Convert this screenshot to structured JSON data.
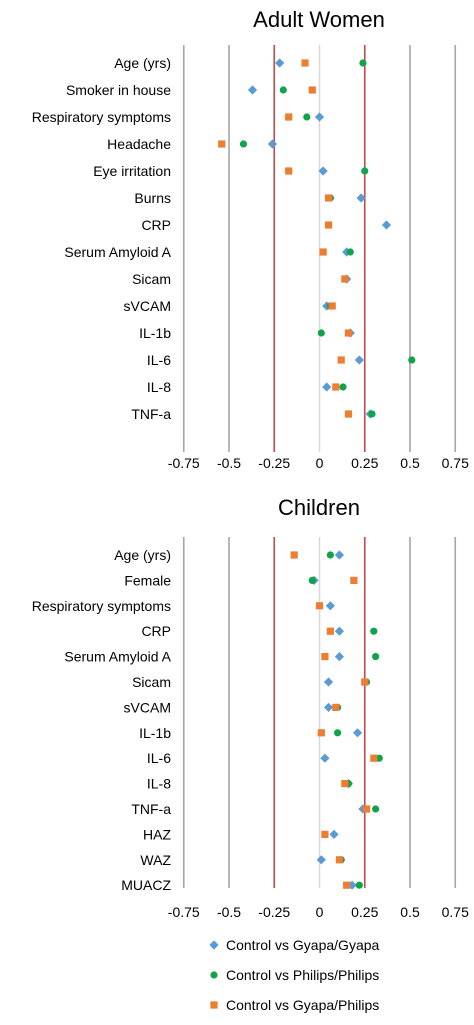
{
  "legend": [
    {
      "name": "Control vs Gyapa/Gyapa",
      "color": "#5b9bd5",
      "marker": "diamond"
    },
    {
      "name": "Control vs Philips/Philips",
      "color": "#0fa34a",
      "marker": "circle"
    },
    {
      "name": "Control vs Gyapa/Philips",
      "color": "#ed7d31",
      "marker": "square"
    }
  ],
  "chart_data": [
    {
      "type": "scatter",
      "title": "Adult Women",
      "xlim": [
        -0.75,
        0.75
      ],
      "x_ticks": [
        "-0.75",
        "-0.5",
        "-0.25",
        "0",
        "0.25",
        "0.5",
        "0.75"
      ],
      "reference_lines": [
        -0.25,
        0.25
      ],
      "categories": [
        "Age (yrs)",
        "Smoker in house",
        "Respiratory symptoms",
        "Headache",
        "Eye irritation",
        "Burns",
        "CRP",
        "Serum Amyloid A",
        "Sicam",
        "sVCAM",
        "IL-1b",
        "IL-6",
        "IL-8",
        "TNF-a"
      ],
      "series": [
        {
          "name": "Control vs Gyapa/Gyapa",
          "values": [
            -0.22,
            -0.37,
            0.0,
            -0.26,
            0.02,
            0.23,
            0.37,
            0.15,
            0.15,
            0.04,
            0.17,
            0.22,
            0.04,
            0.28
          ]
        },
        {
          "name": "Control vs Philips/Philips",
          "values": [
            0.24,
            -0.2,
            -0.07,
            -0.42,
            0.25,
            0.06,
            null,
            0.17,
            0.14,
            0.06,
            0.01,
            0.51,
            0.13,
            0.29
          ]
        },
        {
          "name": "Control vs Gyapa/Philips",
          "values": [
            -0.08,
            -0.04,
            -0.17,
            -0.54,
            -0.17,
            0.05,
            0.05,
            0.02,
            0.14,
            0.07,
            0.16,
            0.12,
            0.09,
            0.16
          ]
        }
      ]
    },
    {
      "type": "scatter",
      "title": "Children",
      "xlim": [
        -0.75,
        0.75
      ],
      "x_ticks": [
        "-0.75",
        "-0.5",
        "-0.25",
        "0",
        "0.25",
        "0.5",
        "0.75"
      ],
      "reference_lines": [
        -0.25,
        0.25
      ],
      "categories": [
        "Age (yrs)",
        "Female",
        "Respiratory symptoms",
        "CRP",
        "Serum Amyloid A",
        "Sicam",
        "sVCAM",
        "IL-1b",
        "IL-6",
        "IL-8",
        "TNF-a",
        "HAZ",
        "WAZ",
        "MUACZ"
      ],
      "series": [
        {
          "name": "Control vs Gyapa/Gyapa",
          "values": [
            0.11,
            -0.03,
            0.06,
            0.11,
            0.11,
            0.05,
            0.05,
            0.21,
            0.03,
            0.16,
            0.24,
            0.08,
            0.01,
            0.18
          ]
        },
        {
          "name": "Control vs Philips/Philips",
          "values": [
            0.06,
            -0.04,
            null,
            0.3,
            0.31,
            0.26,
            0.1,
            0.1,
            0.33,
            0.16,
            0.31,
            null,
            0.12,
            0.22
          ]
        },
        {
          "name": "Control vs Gyapa/Philips",
          "values": [
            -0.14,
            0.19,
            0.0,
            0.06,
            0.03,
            0.25,
            0.09,
            0.01,
            0.3,
            0.14,
            0.26,
            0.03,
            0.11,
            0.15
          ]
        }
      ]
    }
  ]
}
